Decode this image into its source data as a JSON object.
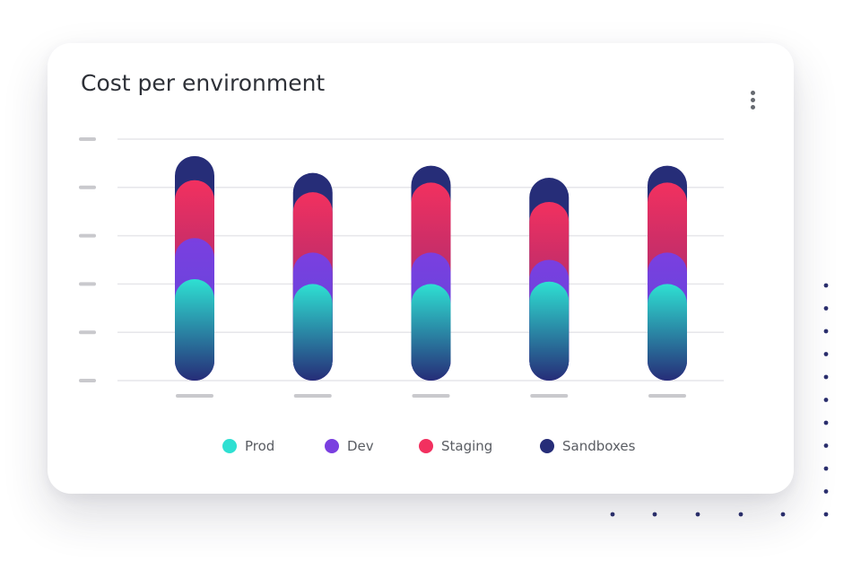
{
  "card": {
    "title": "Cost per environment"
  },
  "colors": {
    "prod": "#2ee0d2",
    "dev": "#7a3fe0",
    "staging": "#f2305f",
    "sandboxes": "#262d78",
    "grid": "#e6e6ea",
    "tick": "#c9c9cd",
    "dots": "#2b2f6e"
  },
  "icons": {
    "menu": "more-vertical-icon"
  },
  "chart_data": {
    "type": "bar",
    "stacked": true,
    "categories": [
      "",
      "",
      "",
      "",
      ""
    ],
    "yticks": [
      "",
      "",
      "",
      "",
      "",
      ""
    ],
    "ylim": [
      0,
      100
    ],
    "grid": true,
    "legend_position": "bottom",
    "series": [
      {
        "name": "Prod",
        "color_key": "prod",
        "values": [
          42,
          40,
          40,
          41,
          40
        ]
      },
      {
        "name": "Dev",
        "color_key": "dev",
        "values": [
          17,
          13,
          13,
          9,
          13
        ]
      },
      {
        "name": "Staging",
        "color_key": "staging",
        "values": [
          24,
          25,
          29,
          24,
          29
        ]
      },
      {
        "name": "Sandboxes",
        "color_key": "sandboxes",
        "values": [
          10,
          8,
          7,
          10,
          7
        ]
      }
    ]
  }
}
